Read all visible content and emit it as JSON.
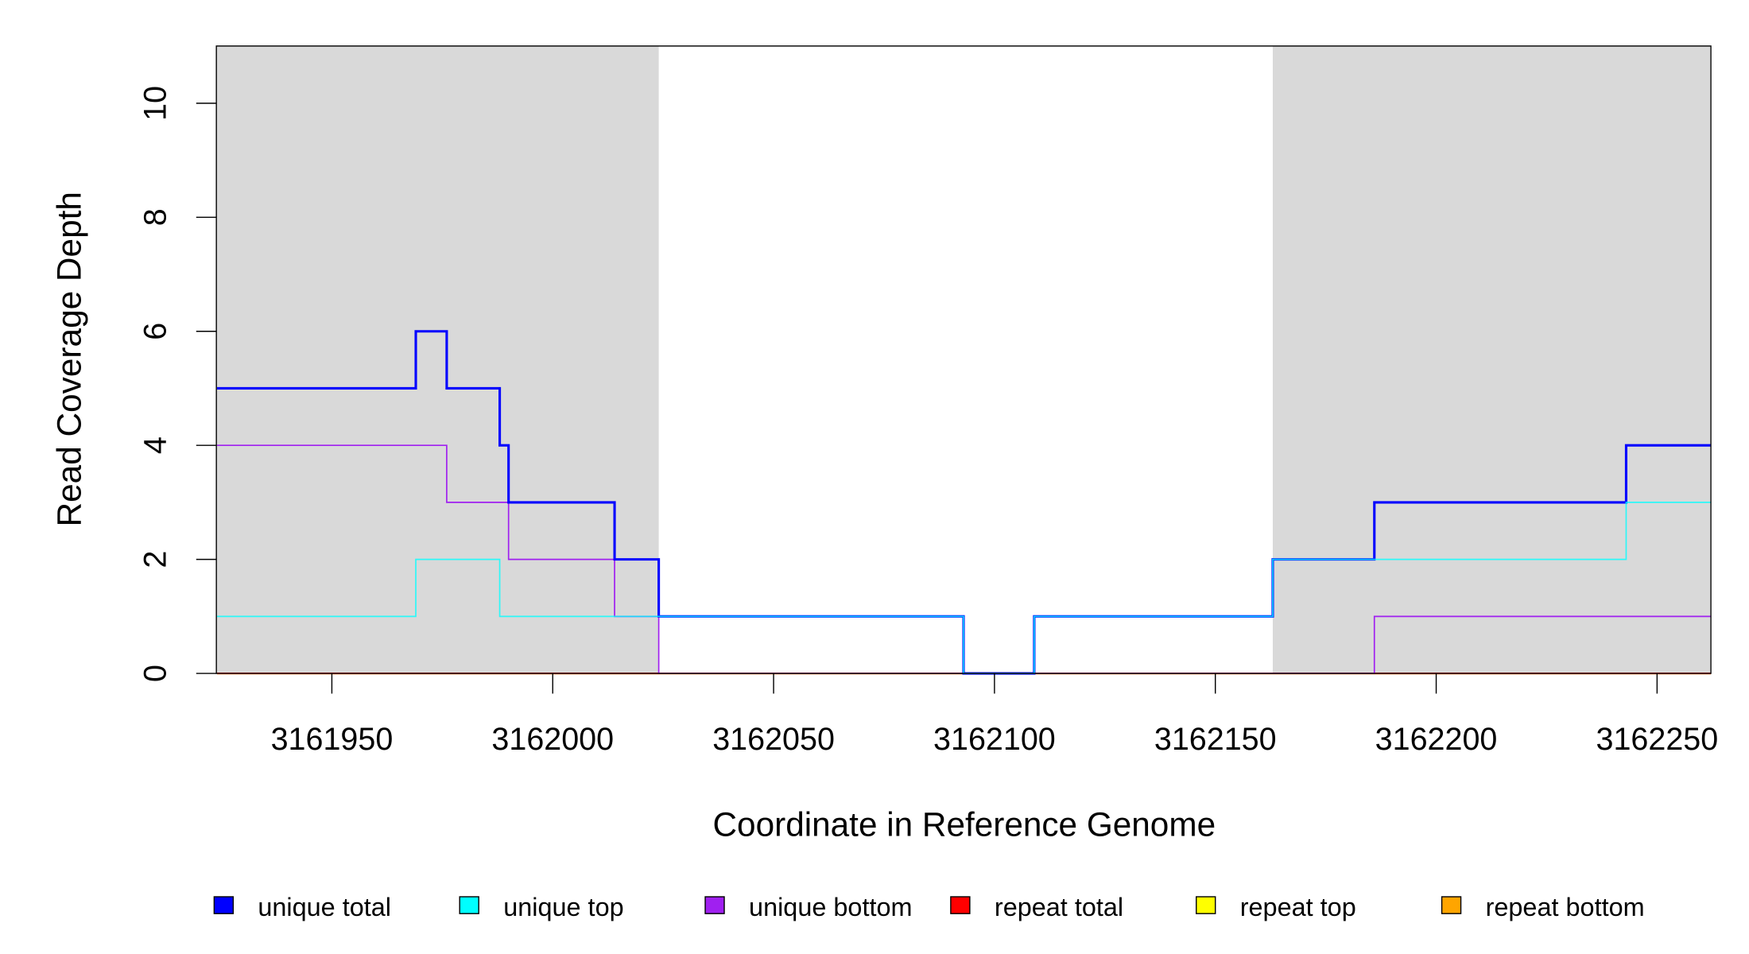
{
  "chart_data": {
    "type": "line",
    "step": true,
    "xlabel": "Coordinate in Reference Genome",
    "ylabel": "Read Coverage Depth",
    "xlim": [
      3161924,
      3162262
    ],
    "ylim": [
      0,
      11
    ],
    "xticks": [
      3161950,
      3162000,
      3162050,
      3162100,
      3162150,
      3162200,
      3162250
    ],
    "yticks": [
      0,
      2,
      4,
      6,
      8,
      10
    ],
    "grid": false,
    "legend_position": "bottom",
    "shaded_regions": [
      {
        "from": 3161924,
        "to": 3162024,
        "color": "#d9d9d9"
      },
      {
        "from": 3162163,
        "to": 3162262,
        "color": "#d9d9d9"
      }
    ],
    "series": [
      {
        "name": "unique total",
        "color": "#0000ff",
        "steps": [
          [
            3161924,
            5
          ],
          [
            3161969,
            6
          ],
          [
            3161976,
            5
          ],
          [
            3161988,
            4
          ],
          [
            3161990,
            3
          ],
          [
            3162014,
            2
          ],
          [
            3162024,
            1
          ],
          [
            3162093,
            0
          ],
          [
            3162109,
            1
          ],
          [
            3162163,
            2
          ],
          [
            3162186,
            3
          ],
          [
            3162243,
            4
          ]
        ]
      },
      {
        "name": "unique top",
        "color": "#00ffff",
        "steps": [
          [
            3161924,
            1
          ],
          [
            3161969,
            2
          ],
          [
            3161988,
            1
          ],
          [
            3162093,
            0
          ],
          [
            3162109,
            1
          ],
          [
            3162163,
            2
          ],
          [
            3162243,
            3
          ]
        ]
      },
      {
        "name": "unique bottom",
        "color": "#a020f0",
        "steps": [
          [
            3161924,
            4
          ],
          [
            3161976,
            3
          ],
          [
            3161990,
            2
          ],
          [
            3162014,
            1
          ],
          [
            3162024,
            0
          ],
          [
            3162186,
            1
          ]
        ]
      },
      {
        "name": "repeat total",
        "color": "#ff0000",
        "steps": [
          [
            3161924,
            0
          ]
        ]
      },
      {
        "name": "repeat top",
        "color": "#ffff00",
        "steps": [
          [
            3161924,
            0
          ]
        ]
      },
      {
        "name": "repeat bottom",
        "color": "#ffa500",
        "steps": [
          [
            3161924,
            0
          ]
        ]
      }
    ]
  }
}
